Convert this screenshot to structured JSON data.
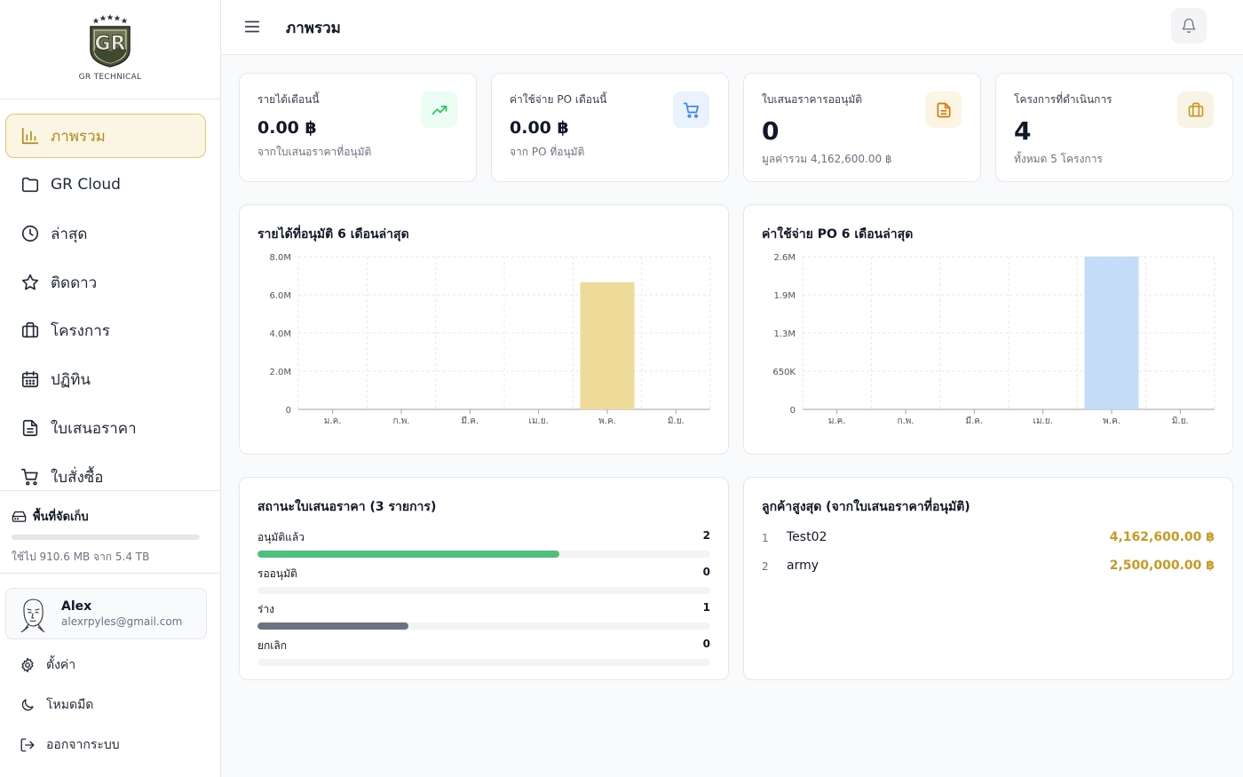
{
  "brand": {
    "name": "GR TECHNICAL",
    "logo_text": "GR"
  },
  "header": {
    "title": "ภาพรวม"
  },
  "sidebar": {
    "items": [
      {
        "label": "ภาพรวม",
        "icon": "bar-chart-icon",
        "active": true
      },
      {
        "label": "GR Cloud",
        "icon": "folder-icon"
      },
      {
        "label": "ล่าสุด",
        "icon": "clock-icon"
      },
      {
        "label": "ติดดาว",
        "icon": "star-icon"
      },
      {
        "label": "โครงการ",
        "icon": "briefcase-icon"
      },
      {
        "label": "ปฏิทิน",
        "icon": "calendar-icon"
      },
      {
        "label": "ใบเสนอราคา",
        "icon": "document-icon"
      },
      {
        "label": "ใบสั่งซื้อ",
        "icon": "cart-icon"
      }
    ],
    "storage": {
      "title": "พื้นที่จัดเก็บ",
      "text": "ใช้ไป 910.6 MB จาก 5.4 TB",
      "used_fraction": 0.0002
    },
    "user": {
      "name": "Alex",
      "email": "alexrpyles@gmail.com"
    },
    "footer": [
      {
        "label": "ตั้งค่า",
        "icon": "gear-icon"
      },
      {
        "label": "โหมดมืด",
        "icon": "moon-icon"
      },
      {
        "label": "ออกจากระบบ",
        "icon": "logout-icon"
      }
    ]
  },
  "stats": [
    {
      "label": "รายได้เดือนนี้",
      "value": "0.00 ฿",
      "sub": "จากใบเสนอราคาที่อนุมัติ",
      "icon": "trending-up-icon",
      "accent": "#22c55e",
      "bg": "#ecfdf3"
    },
    {
      "label": "ค่าใช้จ่าย PO เดือนนี้",
      "value": "0.00 ฿",
      "sub": "จาก PO ที่อนุมัติ",
      "icon": "cart-icon",
      "accent": "#3b82f6",
      "bg": "#eaf2fe"
    },
    {
      "label": "ใบเสนอราคารออนุมัติ",
      "value": "0",
      "sub": "มูลค่ารวม 4,162,600.00 ฿",
      "icon": "document-icon",
      "accent": "#d97706",
      "bg": "#fdf5e3"
    },
    {
      "label": "โครงการที่ดำเนินการ",
      "value": "4",
      "sub": "ทั้งหมด 5 โครงการ",
      "icon": "briefcase-icon",
      "accent": "#c99a1f",
      "bg": "#f8f3e4"
    }
  ],
  "chart_data": [
    {
      "type": "bar",
      "title": "รายได้ที่อนุมัติ 6 เดือนล่าสุด",
      "categories": [
        "ม.ค.",
        "ก.พ.",
        "มี.ค.",
        "เม.ย.",
        "พ.ค.",
        "มิ.ย."
      ],
      "values": [
        0,
        0,
        0,
        0,
        6662600,
        0
      ],
      "ylim": [
        0,
        8000000
      ],
      "yticks": [
        0,
        2000000,
        4000000,
        6000000,
        8000000
      ],
      "ytick_labels": [
        "0",
        "2.0M",
        "4.0M",
        "6.0M",
        "8.0M"
      ],
      "color": "#eedb9a",
      "grid": true
    },
    {
      "type": "bar",
      "title": "ค่าใช้จ่าย PO 6 เดือนล่าสุด",
      "categories": [
        "ม.ค.",
        "ก.พ.",
        "มี.ค.",
        "เม.ย.",
        "พ.ค.",
        "มิ.ย."
      ],
      "values": [
        0,
        0,
        0,
        0,
        2600000,
        0
      ],
      "ylim": [
        0,
        2600000
      ],
      "yticks": [
        0,
        650000,
        1300000,
        1950000,
        2600000
      ],
      "ytick_labels": [
        "0",
        "650K",
        "1.3M",
        "1.9M",
        "2.6M"
      ],
      "color": "#c5dcf9",
      "grid": true
    }
  ],
  "quote_status": {
    "title": "สถานะใบเสนอราคา (3 รายการ)",
    "total": 3,
    "rows": [
      {
        "label": "อนุมัติแล้ว",
        "count": "2",
        "fraction": 0.667,
        "color": "#4fbf7e"
      },
      {
        "label": "รออนุมัติ",
        "count": "0",
        "fraction": 0,
        "color": "#f59e0b"
      },
      {
        "label": "ร่าง",
        "count": "1",
        "fraction": 0.333,
        "color": "#6b7280"
      },
      {
        "label": "ยกเลิก",
        "count": "0",
        "fraction": 0,
        "color": "#ef4444"
      }
    ]
  },
  "top_customers": {
    "title": "ลูกค้าสูงสุด (จากใบเสนอราคาที่อนุมัติ)",
    "rows": [
      {
        "rank": "1",
        "name": "Test02",
        "amount": "4,162,600.00 ฿"
      },
      {
        "rank": "2",
        "name": "army",
        "amount": "2,500,000.00 ฿"
      }
    ]
  }
}
